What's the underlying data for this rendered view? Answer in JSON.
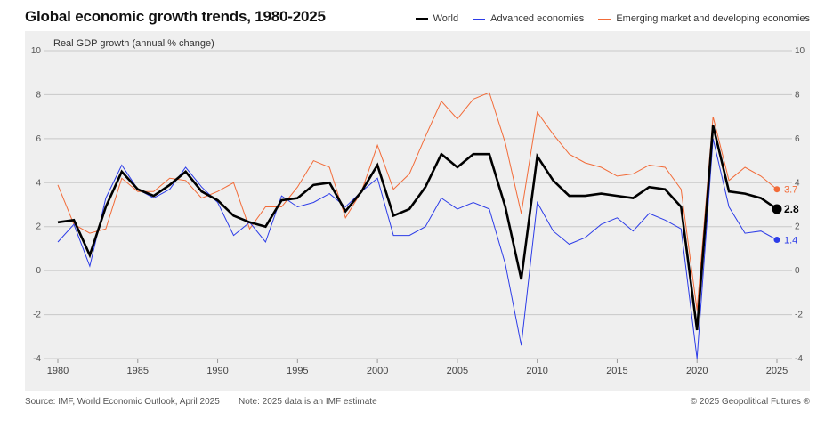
{
  "chart_data": {
    "type": "line",
    "title": "Global economic growth trends, 1980-2025",
    "ylabel": "Real GDP growth (annual % change)",
    "xlabel": "",
    "ylim": [
      -4,
      10
    ],
    "yticks": [
      "10",
      "8",
      "6",
      "4",
      "2",
      "0",
      "-2",
      "-4"
    ],
    "ytick_values": [
      10,
      8,
      6,
      4,
      2,
      0,
      -2,
      -4
    ],
    "xticks": [
      "1980",
      "1985",
      "1990",
      "1995",
      "2000",
      "2005",
      "2010",
      "2015",
      "2020",
      "2025"
    ],
    "xtick_values": [
      1980,
      1985,
      1990,
      1995,
      2000,
      2005,
      2010,
      2015,
      2020,
      2025
    ],
    "xlim": [
      1979.5,
      2025.5
    ],
    "grid": true,
    "legend_position": "top-right",
    "x": [
      1980,
      1981,
      1982,
      1983,
      1984,
      1985,
      1986,
      1987,
      1988,
      1989,
      1990,
      1991,
      1992,
      1993,
      1994,
      1995,
      1996,
      1997,
      1998,
      1999,
      2000,
      2001,
      2002,
      2003,
      2004,
      2005,
      2006,
      2007,
      2008,
      2009,
      2010,
      2011,
      2012,
      2013,
      2014,
      2015,
      2016,
      2017,
      2018,
      2019,
      2020,
      2021,
      2022,
      2023,
      2024,
      2025
    ],
    "series": [
      {
        "name": "Emerging market and developing economies",
        "color": "#f26b38",
        "values": [
          3.9,
          2.1,
          1.7,
          1.9,
          4.2,
          3.6,
          3.6,
          4.2,
          4.1,
          3.3,
          3.6,
          4.0,
          1.9,
          2.9,
          2.9,
          3.8,
          5.0,
          4.7,
          2.4,
          3.6,
          5.7,
          3.7,
          4.4,
          6.1,
          7.7,
          6.9,
          7.8,
          8.1,
          5.8,
          2.6,
          7.2,
          6.2,
          5.3,
          4.9,
          4.7,
          4.3,
          4.4,
          4.8,
          4.7,
          3.7,
          -1.8,
          7.0,
          4.1,
          4.7,
          4.3,
          3.7
        ],
        "end_label": "3.7"
      },
      {
        "name": "Advanced economies",
        "color": "#2c3ce8",
        "values": [
          1.3,
          2.1,
          0.2,
          3.3,
          4.8,
          3.7,
          3.3,
          3.7,
          4.7,
          3.8,
          3.1,
          1.6,
          2.2,
          1.3,
          3.4,
          2.9,
          3.1,
          3.5,
          2.9,
          3.6,
          4.2,
          1.6,
          1.6,
          2.0,
          3.3,
          2.8,
          3.1,
          2.8,
          0.3,
          -3.4,
          3.1,
          1.8,
          1.2,
          1.5,
          2.1,
          2.4,
          1.8,
          2.6,
          2.3,
          1.9,
          -4.0,
          6.0,
          2.9,
          1.7,
          1.8,
          1.4
        ],
        "end_label": "1.4"
      },
      {
        "name": "World",
        "color": "#000000",
        "values": [
          2.2,
          2.3,
          0.7,
          2.9,
          4.5,
          3.7,
          3.4,
          3.9,
          4.5,
          3.6,
          3.2,
          2.5,
          2.2,
          2.0,
          3.2,
          3.3,
          3.9,
          4.0,
          2.7,
          3.6,
          4.8,
          2.5,
          2.8,
          3.8,
          5.3,
          4.7,
          5.3,
          5.3,
          2.9,
          -0.4,
          5.2,
          4.1,
          3.4,
          3.4,
          3.5,
          3.4,
          3.3,
          3.8,
          3.7,
          2.9,
          -2.7,
          6.6,
          3.6,
          3.5,
          3.3,
          2.8
        ],
        "end_label": "2.8"
      }
    ]
  },
  "legend": {
    "items": [
      {
        "label": "World",
        "color": "#000000"
      },
      {
        "label": "Advanced economies",
        "color": "#2c3ce8"
      },
      {
        "label": "Emerging market and developing economies",
        "color": "#f26b38"
      }
    ]
  },
  "footer": {
    "source": "Source: IMF, World Economic Outlook, April 2025",
    "note": "Note: 2025 data is an IMF estimate",
    "copyright": "© 2025 Geopolitical Futures ®"
  }
}
